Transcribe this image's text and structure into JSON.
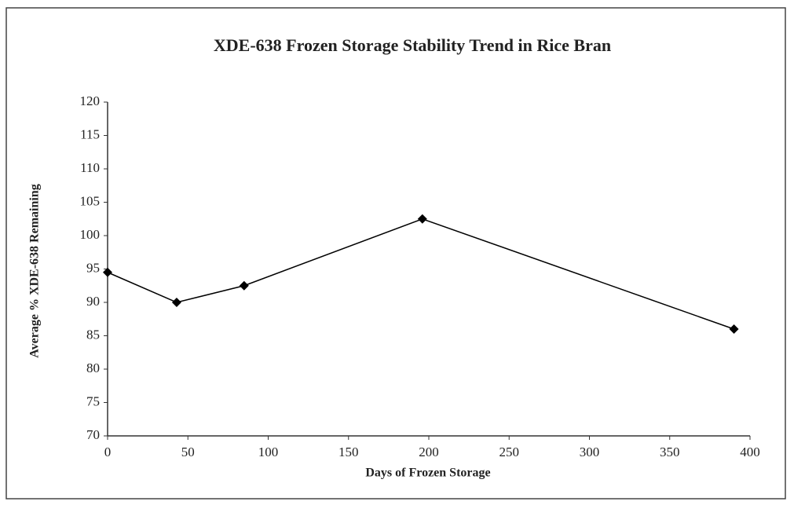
{
  "chart_data": {
    "type": "line",
    "title": "XDE-638 Frozen Storage Stability Trend in Rice Bran",
    "xlabel": "Days of Frozen Storage",
    "ylabel": "Average % XDE-638 Remaining",
    "x": [
      0,
      43,
      85,
      196,
      390
    ],
    "series": [
      {
        "name": "XDE-638",
        "color": "#000000",
        "values": [
          94.5,
          90,
          92.5,
          102.5,
          86
        ]
      }
    ],
    "xlim": [
      0,
      400
    ],
    "xticks": [
      0,
      50,
      100,
      150,
      200,
      250,
      300,
      350,
      400
    ],
    "ylim": [
      70,
      120
    ],
    "yticks": [
      70,
      75,
      80,
      85,
      90,
      95,
      100,
      105,
      110,
      115,
      120
    ],
    "grid": false
  }
}
